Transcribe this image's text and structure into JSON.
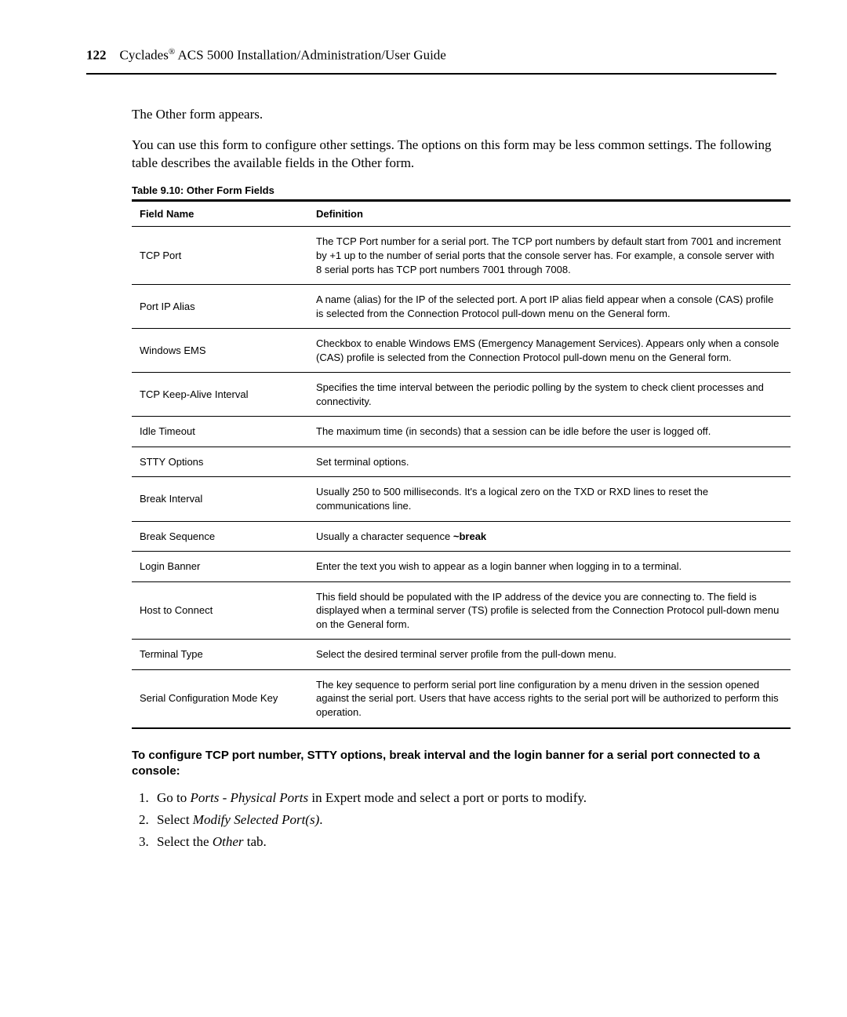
{
  "header": {
    "page_number": "122",
    "product": "Cyclades",
    "superscript": "®",
    "title_rest": " ACS 5000 Installation/Administration/User Guide"
  },
  "intro": {
    "line1": "The Other form appears.",
    "line2": "You can use this form to configure other settings. The options on this form may be less common settings. The following table describes the available fields in the Other form."
  },
  "table": {
    "caption": "Table 9.10: Other Form Fields",
    "columns": [
      "Field Name",
      "Definition"
    ],
    "rows": [
      {
        "name": "TCP Port",
        "def": "The TCP Port number for a serial port. The TCP port numbers by default start from 7001 and increment by +1 up to the number of serial ports that the console server has. For example, a console server with 8 serial ports has TCP port numbers 7001 through 7008."
      },
      {
        "name": "Port IP Alias",
        "def": "A name (alias) for the IP of the selected port. A port IP alias field appear when a console (CAS) profile is selected from the Connection Protocol pull-down menu on the General form."
      },
      {
        "name": "Windows EMS",
        "def": "Checkbox to enable Windows EMS (Emergency Management Services). Appears only when a console (CAS) profile is selected from the Connection Protocol pull-down menu on the General form."
      },
      {
        "name": "TCP Keep-Alive Interval",
        "def": "Specifies the time interval between the periodic polling by the system to check client processes and connectivity."
      },
      {
        "name": "Idle Timeout",
        "def": "The maximum time (in seconds) that a session can be idle before the user is logged off."
      },
      {
        "name": "STTY Options",
        "def": "Set terminal options."
      },
      {
        "name": "Break Interval",
        "def": "Usually 250 to 500 milliseconds. It's a logical zero on the TXD or RXD lines to reset the communications line."
      },
      {
        "name": "Break Sequence",
        "def_prefix": "Usually a character sequence ",
        "def_bold": "~break"
      },
      {
        "name": "Login Banner",
        "def": "Enter the text you wish to appear as a login banner when logging in to a terminal."
      },
      {
        "name": "Host to Connect",
        "def": "This field should be populated with the IP address of the device you are connecting to. The field is displayed when a terminal server (TS) profile is selected from the Connection Protocol pull-down menu on the General form."
      },
      {
        "name": "Terminal Type",
        "def": "Select the desired terminal server profile from the pull-down menu."
      },
      {
        "name": "Serial Configuration Mode Key",
        "def": "The key sequence to perform serial port line configuration by a menu driven in the session opened against the serial port. Users that have access rights to the serial port will be authorized to perform this operation."
      }
    ]
  },
  "subheading": "To configure TCP port number, STTY options, break interval and the login banner for a serial port connected to a console:",
  "steps": {
    "s1_prefix": "Go to ",
    "s1_italic": "Ports - Physical Ports",
    "s1_suffix": " in Expert mode and select a port or ports to modify.",
    "s2_prefix": "Select ",
    "s2_italic": "Modify Selected Port(s)",
    "s2_suffix": ".",
    "s3_prefix": "Select the ",
    "s3_italic": "Other",
    "s3_suffix": " tab."
  }
}
